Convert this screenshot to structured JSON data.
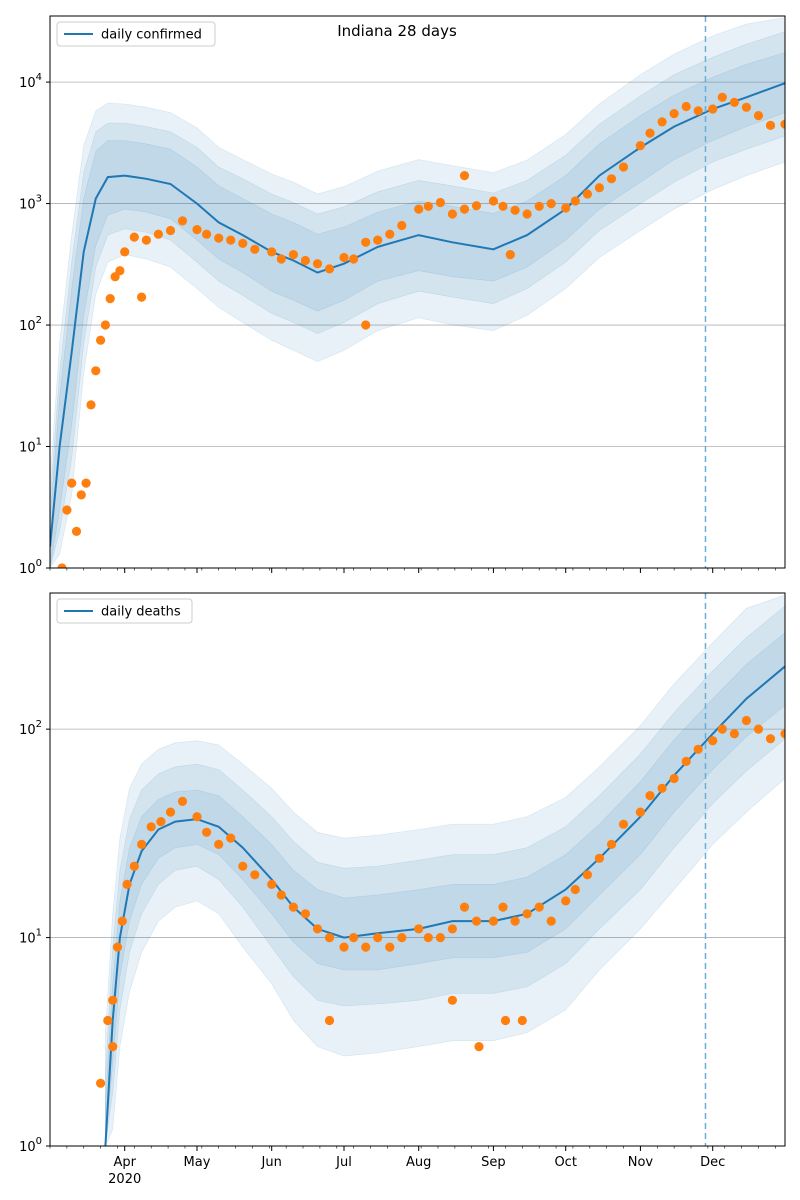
{
  "figure": {
    "title": "Indiana 28 days"
  },
  "chart_data": [
    {
      "type": "line",
      "panel": "top",
      "title": "Indiana 28 days",
      "xlabel": "",
      "ylabel": "",
      "yscale": "log",
      "ylim": [
        1,
        35000
      ],
      "xlim": [
        "2020-03-01",
        "2020-12-31"
      ],
      "grid": "horizontal major",
      "legend": {
        "placement": "top-left",
        "entries": [
          "daily confirmed"
        ]
      },
      "y_ticks": [
        {
          "value": 1,
          "base": "10",
          "exp": "0"
        },
        {
          "value": 10,
          "base": "10",
          "exp": "1"
        },
        {
          "value": 100,
          "base": "10",
          "exp": "2"
        },
        {
          "value": 1000,
          "base": "10",
          "exp": "3"
        },
        {
          "value": 10000,
          "base": "10",
          "exp": "4"
        }
      ],
      "vline": "2020-11-28",
      "model": {
        "x": [
          "2020-03-01",
          "2020-03-05",
          "2020-03-10",
          "2020-03-15",
          "2020-03-20",
          "2020-03-25",
          "2020-04-01",
          "2020-04-10",
          "2020-04-20",
          "2020-05-01",
          "2020-05-10",
          "2020-05-20",
          "2020-06-01",
          "2020-06-10",
          "2020-06-20",
          "2020-07-01",
          "2020-07-15",
          "2020-08-01",
          "2020-08-15",
          "2020-09-01",
          "2020-09-15",
          "2020-10-01",
          "2020-10-15",
          "2020-11-01",
          "2020-11-15",
          "2020-12-01",
          "2020-12-15",
          "2020-12-31"
        ],
        "median": [
          1.5,
          10,
          60,
          400,
          1100,
          1650,
          1700,
          1600,
          1450,
          1000,
          700,
          550,
          400,
          340,
          270,
          320,
          440,
          550,
          480,
          420,
          550,
          900,
          1700,
          2900,
          4300,
          6000,
          7500,
          9800
        ],
        "bands": [
          {
            "lower": [
              1,
              3,
              15,
              120,
              450,
              800,
              900,
              850,
              750,
              500,
              350,
              270,
              190,
              160,
              130,
              160,
              230,
              280,
              250,
              230,
              300,
              500,
              900,
              1500,
              2300,
              3300,
              4300,
              5600
            ],
            "upper": [
              2.5,
              25,
              200,
              1100,
              2700,
              3300,
              3300,
              3100,
              2800,
              2000,
              1400,
              1100,
              820,
              700,
              560,
              640,
              850,
              1050,
              950,
              830,
              1050,
              1700,
              3100,
              5300,
              7800,
              11000,
              14000,
              17500
            ]
          },
          {
            "lower": [
              1,
              2,
              8,
              70,
              300,
              550,
              620,
              580,
              500,
              330,
              230,
              175,
              125,
              105,
              85,
              105,
              150,
              190,
              170,
              150,
              200,
              330,
              600,
              1000,
              1500,
              2200,
              2800,
              3600
            ],
            "upper": [
              3.5,
              40,
              330,
              1800,
              3900,
              4600,
              4600,
              4300,
              3900,
              2900,
              2000,
              1600,
              1200,
              1020,
              820,
              940,
              1250,
              1550,
              1400,
              1220,
              1550,
              2500,
              4500,
              7700,
              11500,
              16000,
              20500,
              26000
            ]
          },
          {
            "lower": [
              1,
              1.3,
              4,
              40,
              180,
              330,
              380,
              350,
              300,
              200,
              140,
              105,
              75,
              62,
              50,
              62,
              90,
              115,
              100,
              90,
              120,
              200,
              360,
              600,
              900,
              1300,
              1700,
              2200
            ],
            "upper": [
              5,
              70,
              550,
              3000,
              5800,
              6700,
              6600,
              6200,
              5600,
              4200,
              2900,
              2300,
              1750,
              1500,
              1200,
              1380,
              1850,
              2300,
              2050,
              1800,
              2280,
              3700,
              6600,
              11500,
              17000,
              24000,
              30000,
              34000
            ]
          }
        ]
      },
      "observed": {
        "x": [
          "2020-03-06",
          "2020-03-08",
          "2020-03-10",
          "2020-03-12",
          "2020-03-14",
          "2020-03-16",
          "2020-03-18",
          "2020-03-20",
          "2020-03-22",
          "2020-03-24",
          "2020-03-26",
          "2020-03-28",
          "2020-03-30",
          "2020-04-01",
          "2020-04-05",
          "2020-04-10",
          "2020-04-15",
          "2020-04-20",
          "2020-04-25",
          "2020-05-01",
          "2020-05-05",
          "2020-05-10",
          "2020-05-15",
          "2020-05-20",
          "2020-05-25",
          "2020-06-01",
          "2020-06-05",
          "2020-06-10",
          "2020-06-15",
          "2020-06-20",
          "2020-06-25",
          "2020-07-01",
          "2020-07-05",
          "2020-07-10",
          "2020-07-15",
          "2020-07-20",
          "2020-07-25",
          "2020-08-01",
          "2020-08-05",
          "2020-08-10",
          "2020-08-15",
          "2020-08-20",
          "2020-08-25",
          "2020-09-01",
          "2020-09-05",
          "2020-09-10",
          "2020-09-15",
          "2020-09-20",
          "2020-09-25",
          "2020-10-01",
          "2020-10-05",
          "2020-10-10",
          "2020-10-15",
          "2020-10-20",
          "2020-10-25",
          "2020-11-01",
          "2020-11-05",
          "2020-11-10",
          "2020-11-15",
          "2020-11-20",
          "2020-11-25",
          "2020-12-01",
          "2020-12-05",
          "2020-12-10",
          "2020-12-15",
          "2020-12-20",
          "2020-12-25",
          "2020-12-31",
          "2020-04-08",
          "2020-07-10",
          "2020-08-20",
          "2020-09-08"
        ],
        "y": [
          1,
          3,
          5,
          2,
          4,
          5,
          22,
          42,
          75,
          100,
          165,
          250,
          280,
          400,
          530,
          500,
          560,
          600,
          720,
          610,
          560,
          520,
          500,
          470,
          420,
          400,
          350,
          380,
          340,
          320,
          290,
          360,
          350,
          480,
          500,
          560,
          660,
          900,
          950,
          1020,
          820,
          900,
          960,
          1050,
          950,
          880,
          820,
          950,
          1000,
          920,
          1050,
          1200,
          1350,
          1600,
          2000,
          3000,
          3800,
          4700,
          5500,
          6300,
          5800,
          6000,
          7500,
          6800,
          6200,
          5300,
          4400,
          4500,
          170,
          100,
          1700,
          380
        ]
      }
    },
    {
      "type": "line",
      "panel": "bottom",
      "title": "",
      "xlabel": "",
      "ylabel": "",
      "yscale": "log",
      "ylim": [
        1,
        450
      ],
      "xlim": [
        "2020-03-01",
        "2020-12-31"
      ],
      "grid": "horizontal major",
      "legend": {
        "placement": "top-left",
        "entries": [
          "daily deaths"
        ]
      },
      "y_ticks": [
        {
          "value": 1,
          "base": "10",
          "exp": "0"
        },
        {
          "value": 10,
          "base": "10",
          "exp": "1"
        },
        {
          "value": 100,
          "base": "10",
          "exp": "2"
        }
      ],
      "x_ticks": [
        {
          "date": "2020-04-01",
          "label": "Apr",
          "year": "2020"
        },
        {
          "date": "2020-05-01",
          "label": "May",
          "year": ""
        },
        {
          "date": "2020-06-01",
          "label": "Jun",
          "year": ""
        },
        {
          "date": "2020-07-01",
          "label": "Jul",
          "year": ""
        },
        {
          "date": "2020-08-01",
          "label": "Aug",
          "year": ""
        },
        {
          "date": "2020-09-01",
          "label": "Sep",
          "year": ""
        },
        {
          "date": "2020-10-01",
          "label": "Oct",
          "year": ""
        },
        {
          "date": "2020-11-01",
          "label": "Nov",
          "year": ""
        },
        {
          "date": "2020-12-01",
          "label": "Dec",
          "year": ""
        }
      ],
      "vline": "2020-11-28",
      "model": {
        "x": [
          "2020-03-24",
          "2020-03-27",
          "2020-03-30",
          "2020-04-03",
          "2020-04-08",
          "2020-04-15",
          "2020-04-22",
          "2020-05-01",
          "2020-05-10",
          "2020-05-20",
          "2020-06-01",
          "2020-06-10",
          "2020-06-20",
          "2020-07-01",
          "2020-07-15",
          "2020-08-01",
          "2020-08-15",
          "2020-09-01",
          "2020-09-15",
          "2020-10-01",
          "2020-10-15",
          "2020-11-01",
          "2020-11-15",
          "2020-12-01",
          "2020-12-15",
          "2020-12-31"
        ],
        "median": [
          1,
          4,
          10,
          18,
          26,
          33,
          36,
          37,
          34,
          27,
          19,
          14,
          11,
          10,
          10.5,
          11,
          12,
          12,
          13,
          17,
          24,
          38,
          60,
          95,
          140,
          200
        ],
        "bands": [
          {
            "lower": [
              1,
              2.5,
              6.5,
              12,
              18,
              24,
              27,
              28,
              25,
              19,
              13,
              9.5,
              7.5,
              7,
              7,
              7.5,
              8,
              8,
              8.5,
              11,
              16,
              25,
              40,
              64,
              92,
              130
            ],
            "upper": [
              1.6,
              6,
              15,
              27,
              38,
              46,
              50,
              51,
              48,
              38,
              28,
              21,
              17,
              15.5,
              16,
              17,
              18,
              18,
              19.5,
              25,
              35,
              56,
              89,
              140,
              205,
              290
            ]
          },
          {
            "lower": [
              1,
              1.8,
              4.5,
              8.5,
              13,
              18,
              21,
              22,
              19,
              14,
              9,
              6.5,
              5,
              4.7,
              4.8,
              5,
              5.4,
              5.4,
              5.8,
              7.5,
              11,
              17,
              27,
              44,
              63,
              90
            ],
            "upper": [
              2.2,
              9,
              21,
              37,
              51,
              61,
              66,
              68,
              64,
              51,
              38,
              29,
              23,
              21.5,
              22,
              23.5,
              25,
              25,
              27,
              34,
              48,
              76,
              120,
              190,
              275,
              390
            ]
          },
          {
            "lower": [
              1,
              1.2,
              3,
              5.5,
              8.5,
              12,
              14,
              15,
              13,
              9,
              6,
              4,
              3,
              2.7,
              2.8,
              3,
              3.2,
              3.2,
              3.5,
              4.5,
              7,
              11,
              17,
              28,
              40,
              58
            ],
            "upper": [
              3.5,
              13,
              30,
              52,
              68,
              80,
              86,
              88,
              84,
              68,
              52,
              40,
              32,
              30,
              31,
              33,
              35,
              35,
              38,
              47,
              66,
              104,
              165,
              260,
              380,
              440
            ]
          }
        ]
      },
      "observed": {
        "x": [
          "2020-03-22",
          "2020-03-25",
          "2020-03-27",
          "2020-03-29",
          "2020-03-31",
          "2020-04-02",
          "2020-04-05",
          "2020-04-08",
          "2020-04-12",
          "2020-04-16",
          "2020-04-20",
          "2020-04-25",
          "2020-05-01",
          "2020-05-05",
          "2020-05-10",
          "2020-05-15",
          "2020-05-20",
          "2020-05-25",
          "2020-06-01",
          "2020-06-05",
          "2020-06-10",
          "2020-06-15",
          "2020-06-20",
          "2020-06-25",
          "2020-07-01",
          "2020-07-05",
          "2020-07-10",
          "2020-07-15",
          "2020-07-20",
          "2020-07-25",
          "2020-08-01",
          "2020-08-05",
          "2020-08-10",
          "2020-08-15",
          "2020-08-20",
          "2020-08-25",
          "2020-09-01",
          "2020-09-05",
          "2020-09-10",
          "2020-09-15",
          "2020-09-20",
          "2020-09-25",
          "2020-10-01",
          "2020-10-05",
          "2020-10-10",
          "2020-10-15",
          "2020-10-20",
          "2020-10-25",
          "2020-11-01",
          "2020-11-05",
          "2020-11-10",
          "2020-11-15",
          "2020-11-20",
          "2020-11-25",
          "2020-12-01",
          "2020-12-05",
          "2020-12-10",
          "2020-12-15",
          "2020-12-20",
          "2020-12-25",
          "2020-12-31",
          "2020-03-27",
          "2020-06-25",
          "2020-08-15",
          "2020-08-26",
          "2020-09-06",
          "2020-09-13"
        ],
        "y": [
          2,
          4,
          5,
          9,
          12,
          18,
          22,
          28,
          34,
          36,
          40,
          45,
          38,
          32,
          28,
          30,
          22,
          20,
          18,
          16,
          14,
          13,
          11,
          10,
          9,
          10,
          9,
          10,
          9,
          10,
          11,
          10,
          10,
          11,
          14,
          12,
          12,
          14,
          12,
          13,
          14,
          12,
          15,
          17,
          20,
          24,
          28,
          35,
          40,
          48,
          52,
          58,
          70,
          80,
          88,
          100,
          95,
          110,
          100,
          90,
          95,
          3,
          4,
          5,
          3,
          4,
          4
        ]
      }
    }
  ],
  "colors": {
    "model_line": "#1f77b4",
    "band": "#1f77b4",
    "observed": "#ff7f0e",
    "vline": "#6aaed6",
    "grid": "#b0b0b0"
  }
}
